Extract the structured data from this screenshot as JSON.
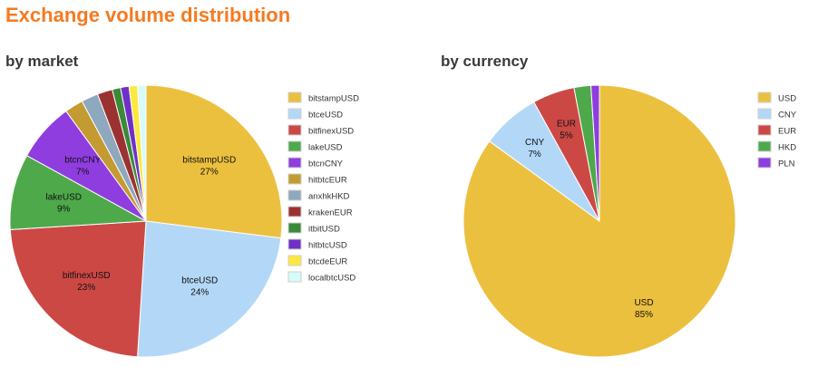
{
  "page": {
    "title": "Exchange volume distribution"
  },
  "chart_data": [
    {
      "type": "pie",
      "title": "by market",
      "legend": "right",
      "start_angle": "12 o'clock, clockwise",
      "slices": [
        {
          "name": "bitstampUSD",
          "value": 27,
          "label": "27%",
          "color": "#ecc03f"
        },
        {
          "name": "btceUSD",
          "value": 24,
          "label": "24%",
          "color": "#b3d8f7"
        },
        {
          "name": "bitfinexUSD",
          "value": 23,
          "label": "23%",
          "color": "#cc4845"
        },
        {
          "name": "lakeUSD",
          "value": 9,
          "label": "9%",
          "color": "#4ea94a"
        },
        {
          "name": "btcnCNY",
          "value": 7,
          "label": "7%",
          "color": "#8f3ddf"
        },
        {
          "name": "hitbtcEUR",
          "value": 2.2,
          "label": "",
          "color": "#c39b32"
        },
        {
          "name": "anxhkHKD",
          "value": 2.0,
          "label": "",
          "color": "#8ea8bd"
        },
        {
          "name": "krakenEUR",
          "value": 1.8,
          "label": "",
          "color": "#9b3232"
        },
        {
          "name": "itbitUSD",
          "value": 1.0,
          "label": "",
          "color": "#3a8a38"
        },
        {
          "name": "hitbtcUSD",
          "value": 1.0,
          "label": "",
          "color": "#7030c7"
        },
        {
          "name": "btcdeEUR",
          "value": 1.0,
          "label": "",
          "color": "#fce83f"
        },
        {
          "name": "localbtcUSD",
          "value": 1.0,
          "label": "",
          "color": "#d7fafa"
        }
      ]
    },
    {
      "type": "pie",
      "title": "by currency",
      "legend": "right",
      "start_angle": "12 o'clock, clockwise",
      "slices": [
        {
          "name": "USD",
          "value": 85,
          "label": "85%",
          "color": "#ecc03f"
        },
        {
          "name": "CNY",
          "value": 7,
          "label": "7%",
          "color": "#b3d8f7"
        },
        {
          "name": "EUR",
          "value": 5,
          "label": "5%",
          "color": "#cc4845"
        },
        {
          "name": "HKD",
          "value": 2,
          "label": "",
          "color": "#4ea94a"
        },
        {
          "name": "PLN",
          "value": 1,
          "label": "",
          "color": "#8f3ddf"
        }
      ]
    }
  ]
}
